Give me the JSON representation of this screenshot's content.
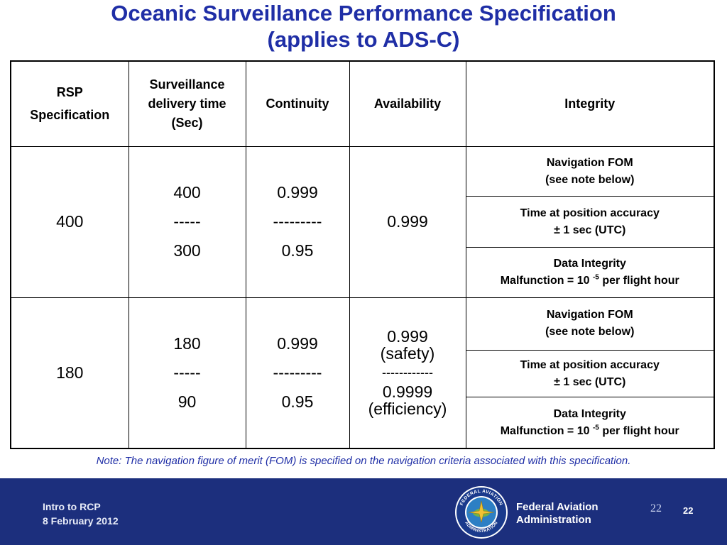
{
  "title": {
    "line1": "Oceanic Surveillance Performance Specification",
    "line2": "(applies to ADS-C)"
  },
  "table": {
    "headers": {
      "rsp_line1": "RSP",
      "rsp_line2": "Specification",
      "delivery_line1": "Surveillance",
      "delivery_line2": "delivery time",
      "delivery_line3": "(Sec)",
      "continuity": "Continuity",
      "availability": "Availability",
      "integrity": "Integrity"
    },
    "rows": [
      {
        "rsp": "400",
        "delivery": [
          "400",
          "-----",
          "300"
        ],
        "continuity": [
          "0.999",
          "---------",
          "0.95"
        ],
        "availability": [
          "0.999"
        ],
        "integrity": [
          [
            "Navigation FOM",
            "(see note below)"
          ],
          [
            "Time at position accuracy",
            "± 1 sec (UTC)"
          ],
          [
            "Data Integrity",
            "Malfunction = 10",
            "-5",
            "per flight hour"
          ]
        ]
      },
      {
        "rsp": "180",
        "delivery": [
          "180",
          "-----",
          "90"
        ],
        "continuity": [
          "0.999",
          "---------",
          "0.95"
        ],
        "availability": [
          "0.999",
          "(safety)",
          "------------",
          "0.9999",
          "(efficiency)"
        ],
        "integrity": [
          [
            "Navigation FOM",
            "(see note below)"
          ],
          [
            "Time at position accuracy",
            "± 1 sec (UTC)"
          ],
          [
            "Data Integrity",
            "Malfunction = 10",
            "-5",
            "per flight hour"
          ]
        ]
      }
    ]
  },
  "note": "Note: The navigation figure of merit (FOM) is specified on the navigation criteria associated with this specification.",
  "footer": {
    "course": "Intro to RCP",
    "date": "8 February 2012",
    "agency_line1": "Federal Aviation",
    "agency_line2": "Administration",
    "seal_text_top": "FEDERAL AVIATION",
    "seal_text_bottom": "ADMINISTRATION",
    "page_serif": "22",
    "page_bold": "22",
    "colors": {
      "bar": "#1c2f7d",
      "title": "#1f2ea6"
    }
  }
}
